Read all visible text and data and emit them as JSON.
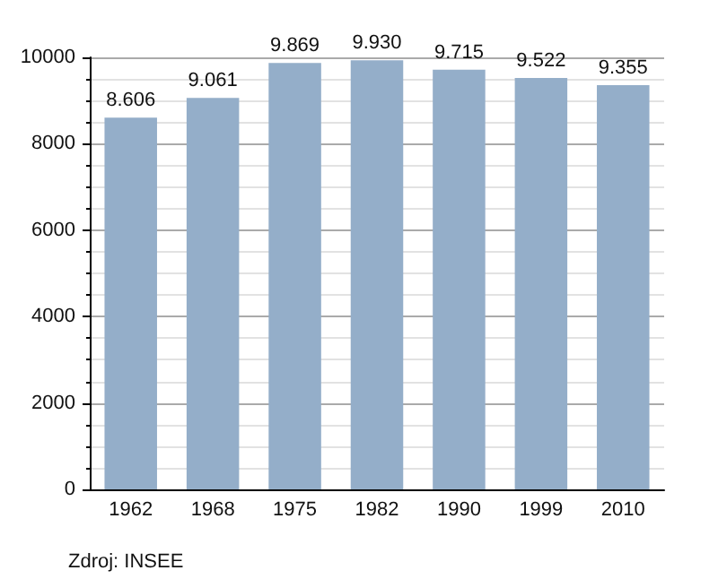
{
  "chart_data": {
    "type": "bar",
    "categories": [
      "1962",
      "1968",
      "1975",
      "1982",
      "1990",
      "1999",
      "2010"
    ],
    "values": [
      8606,
      9061,
      9869,
      9930,
      9715,
      9522,
      9355
    ],
    "value_labels": [
      "8.606",
      "9.061",
      "9.869",
      "9.930",
      "9.715",
      "9.522",
      "9.355"
    ],
    "color": "#94aec9",
    "ylim": [
      0,
      10000
    ],
    "yticks": [
      0,
      2000,
      4000,
      6000,
      8000,
      10000
    ],
    "grid": "y",
    "annotations": [
      "Zdroj: INSEE"
    ]
  }
}
